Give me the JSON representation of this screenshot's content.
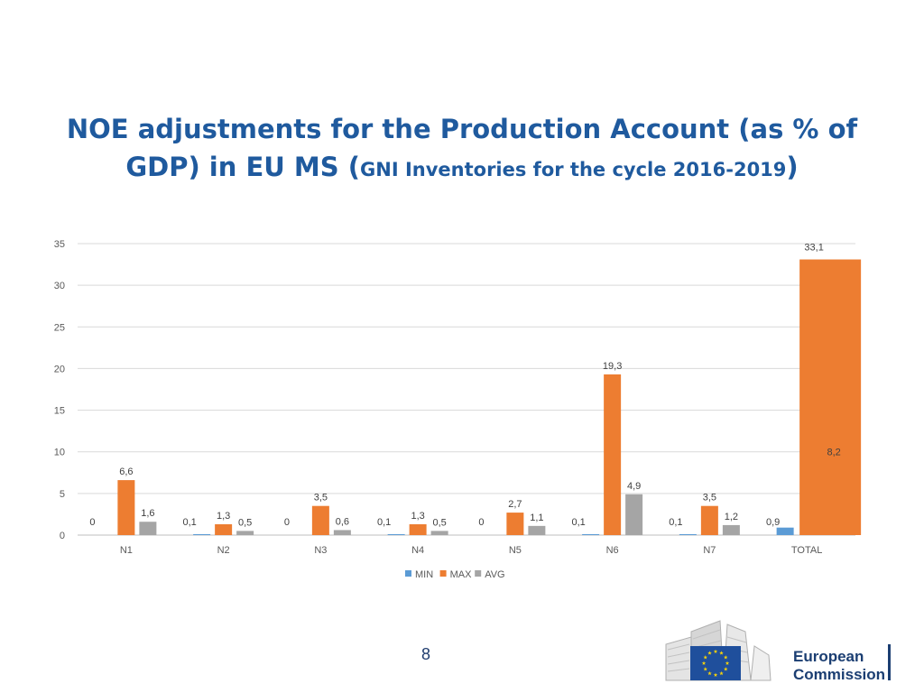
{
  "title": {
    "main_line1": "NOE adjustments for the Production Account (as % of",
    "main_line2_prefix": "GDP) in EU MS (",
    "sub": "GNI Inventories for the cycle 2016-2019",
    "close": ")"
  },
  "chart_data": {
    "type": "bar",
    "categories": [
      "N1",
      "N2",
      "N3",
      "N4",
      "N5",
      "N6",
      "N7",
      "TOTAL"
    ],
    "series": [
      {
        "name": "MIN",
        "color": "#5b9bd5",
        "values": [
          0,
          0.1,
          0,
          0.1,
          0,
          0.1,
          0.1,
          0.9
        ],
        "labels": [
          "0",
          "0,1",
          "0",
          "0,1",
          "0",
          "0,1",
          "0,1",
          "0,9"
        ]
      },
      {
        "name": "MAX",
        "color": "#ed7d31",
        "values": [
          6.6,
          1.3,
          3.5,
          1.3,
          2.7,
          19.3,
          3.5,
          33.1
        ],
        "labels": [
          "6,6",
          "1,3",
          "3,5",
          "1,3",
          "2,7",
          "19,3",
          "3,5",
          "33,1"
        ]
      },
      {
        "name": "AVG",
        "color": "#a5a5a5",
        "values": [
          1.6,
          0.5,
          0.6,
          0.5,
          1.1,
          4.9,
          1.2,
          8.2
        ],
        "labels": [
          "1,6",
          "0,5",
          "0,6",
          "0,5",
          "1,1",
          "4,9",
          "1,2",
          "8,2"
        ]
      }
    ],
    "yticks": [
      0,
      5,
      10,
      15,
      20,
      25,
      30,
      35
    ],
    "ylim": [
      0,
      35
    ],
    "grid": true,
    "legend": "bottom"
  },
  "page_number": "8",
  "logo": {
    "line1": "European",
    "line2": "Commission"
  }
}
